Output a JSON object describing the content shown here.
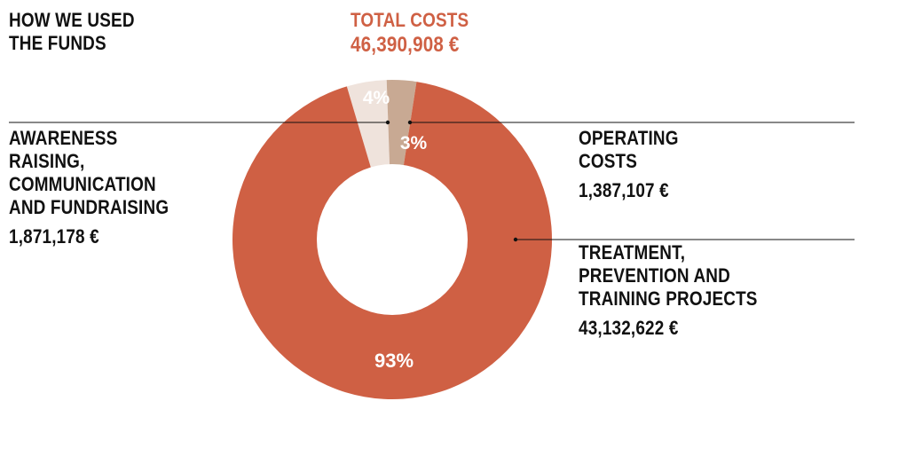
{
  "heading": [
    "HOW WE USED",
    "THE FUNDS"
  ],
  "total": {
    "label": "TOTAL COSTS",
    "amount": "46,390,908 €"
  },
  "colors": {
    "accent": "#cf6044",
    "treatment": "#cf6044",
    "awareness": "#efe3dc",
    "operating": "#c8a993",
    "hole": "#ffffff",
    "leader": "#111111"
  },
  "chart_data": {
    "type": "pie",
    "donut": true,
    "slices": [
      {
        "label_lines": [
          "AWARENESS",
          "RAISING,",
          "COMMUNICATION",
          "AND FUNDRAISING"
        ],
        "amount": "1,871,178 €",
        "value": 1871178,
        "percent": "4%",
        "color": "#efe3dc"
      },
      {
        "label_lines": [
          "OPERATING",
          "COSTS"
        ],
        "amount": "1,387,107 €",
        "value": 1387107,
        "percent": "3%",
        "color": "#c8a993"
      },
      {
        "label_lines": [
          "TREATMENT,",
          "PREVENTION AND",
          "TRAINING PROJECTS"
        ],
        "amount": "43,132,622 €",
        "value": 43132622,
        "percent": "93%",
        "color": "#cf6044"
      }
    ]
  }
}
